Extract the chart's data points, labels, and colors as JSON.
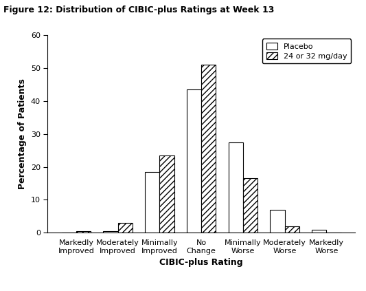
{
  "title": "Figure 12: Distribution of CIBIC-plus Ratings at Week 13",
  "categories": [
    "Markedly\nImproved",
    "Moderately\nImproved",
    "Minimally\nImproved",
    "No\nChange",
    "Minimally\nWorse",
    "Moderately\nWorse",
    "Markedly\nWorse"
  ],
  "placebo": [
    0,
    0.5,
    18.5,
    43.5,
    27.5,
    7,
    1
  ],
  "drug": [
    0.5,
    3.0,
    23.5,
    51.0,
    16.5,
    2.0,
    0
  ],
  "xlabel": "CIBIC-plus Rating",
  "ylabel": "Percentage of Patients",
  "ylim": [
    0,
    60
  ],
  "yticks": [
    0,
    10,
    20,
    30,
    40,
    50,
    60
  ],
  "legend_labels": [
    "Placebo",
    "24 or 32 mg/day"
  ],
  "bar_width": 0.35,
  "background_color": "#ffffff",
  "title_fontsize": 9,
  "axis_label_fontsize": 9,
  "tick_fontsize": 8,
  "legend_fontsize": 8
}
